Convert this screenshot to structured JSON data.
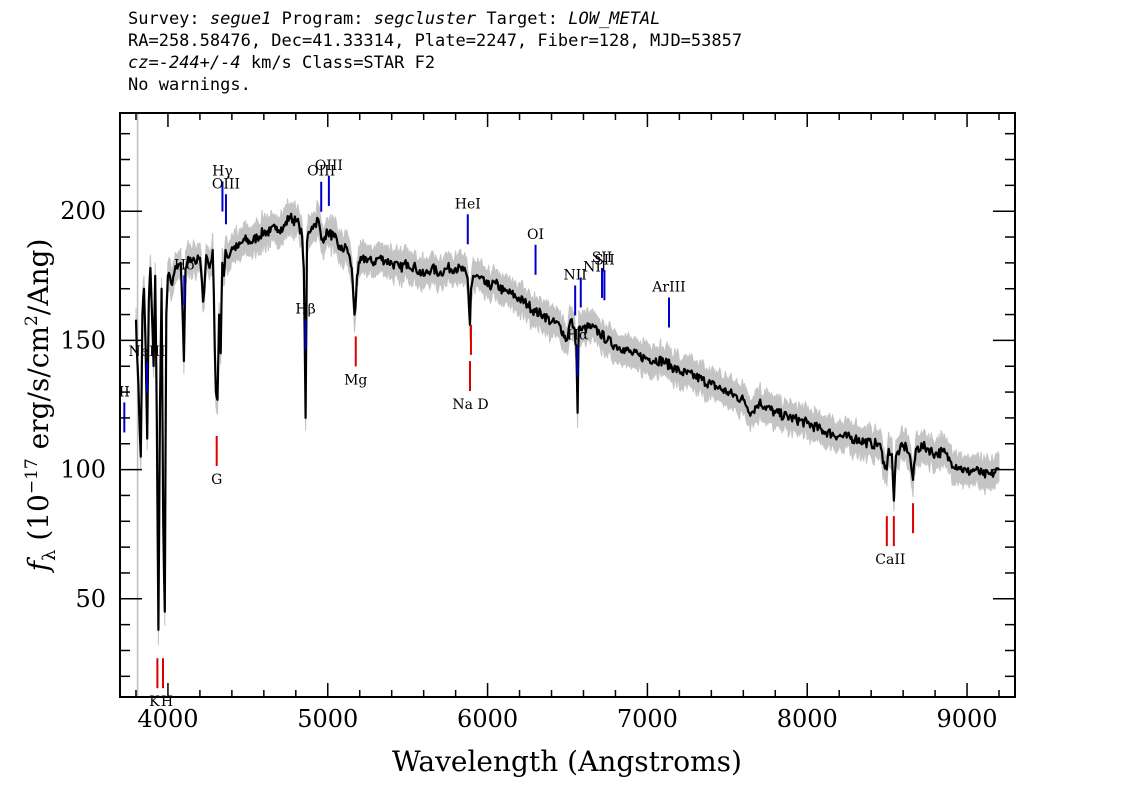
{
  "header": {
    "survey_label": "Survey:",
    "survey_value": "segue1",
    "program_label": "Program:",
    "program_value": "segcluster",
    "target_label": "Target:",
    "target_value": "LOW_METAL",
    "line2": "RA=258.58476, Dec=41.33314, Plate=2247, Fiber=128, MJD=53857",
    "cz_label": "cz=",
    "cz_value": "-244+/-4",
    "cz_unit_class": " km/s Class=STAR F2",
    "warnings": "No warnings."
  },
  "chart_data": {
    "type": "line",
    "xlabel": "Wavelength (Angstroms)",
    "ylabel": "f_λ (10^-17 erg/s/cm^2/Ang)",
    "xlim": [
      3700,
      9300
    ],
    "ylim": [
      12,
      238
    ],
    "x_ticks": [
      4000,
      5000,
      6000,
      7000,
      8000,
      9000
    ],
    "y_ticks": [
      50,
      100,
      150,
      200
    ],
    "colors": {
      "flux": "#000000",
      "error_band": "#c4c4c4",
      "emission_marker": "#0000cc",
      "absorption_marker": "#dd0000"
    },
    "series": [
      {
        "x": [
          3800,
          3810,
          3820,
          3830,
          3840,
          3850,
          3860,
          3870,
          3880,
          3890,
          3900,
          3910,
          3920,
          3930,
          3940,
          3950,
          3960,
          3970,
          3980,
          3990,
          4000,
          4020,
          4040,
          4060,
          4080,
          4100,
          4110,
          4120,
          4140,
          4160,
          4180,
          4200,
          4220,
          4240,
          4260,
          4280,
          4300,
          4310,
          4320,
          4330,
          4340,
          4350,
          4360,
          4380,
          4400,
          4440,
          4480,
          4520,
          4560,
          4600,
          4640,
          4680,
          4720,
          4760,
          4800,
          4820,
          4840,
          4850,
          4861,
          4870,
          4880,
          4900,
          4920,
          4940,
          4960,
          4980,
          5000,
          5040,
          5080,
          5120,
          5150,
          5167,
          5172,
          5183,
          5200,
          5240,
          5280,
          5320,
          5360,
          5400,
          5450,
          5500,
          5550,
          5600,
          5650,
          5700,
          5750,
          5800,
          5850,
          5875,
          5890,
          5896,
          5910,
          5950,
          6000,
          6050,
          6100,
          6150,
          6200,
          6250,
          6300,
          6350,
          6400,
          6450,
          6495,
          6520,
          6540,
          6555,
          6563,
          6570,
          6590,
          6620,
          6650,
          6700,
          6750,
          6800,
          6850,
          6900,
          6950,
          7000,
          7100,
          7200,
          7300,
          7400,
          7500,
          7600,
          7650,
          7700,
          7800,
          7900,
          8000,
          8100,
          8200,
          8300,
          8400,
          8450,
          8480,
          8498,
          8510,
          8530,
          8542,
          8555,
          8580,
          8620,
          8640,
          8662,
          8680,
          8720,
          8760,
          8800,
          8850,
          8900,
          8950,
          9000,
          9050,
          9100,
          9150,
          9200
        ],
        "y": [
          158,
          140,
          122,
          105,
          160,
          170,
          148,
          112,
          165,
          178,
          160,
          140,
          175,
          120,
          38,
          125,
          170,
          80,
          45,
          160,
          175,
          172,
          176,
          178,
          180,
          142,
          178,
          180,
          182,
          182,
          180,
          182,
          165,
          183,
          178,
          185,
          130,
          127,
          160,
          145,
          180,
          175,
          185,
          182,
          186,
          186,
          189,
          188,
          190,
          192,
          192,
          194,
          193,
          198,
          196,
          195,
          190,
          178,
          120,
          188,
          192,
          194,
          195,
          197,
          189,
          190,
          192,
          190,
          185,
          186,
          178,
          160,
          162,
          175,
          180,
          182,
          180,
          182,
          181,
          180,
          178,
          180,
          178,
          175,
          178,
          176,
          178,
          178,
          177,
          174,
          156,
          170,
          175,
          174,
          171,
          172,
          169,
          168,
          166,
          164,
          161,
          160,
          157,
          156,
          150,
          158,
          155,
          148,
          122,
          155,
          154,
          155,
          155,
          153,
          150,
          148,
          147,
          145,
          144,
          143,
          142,
          138,
          136,
          133,
          130,
          127,
          122,
          126,
          122,
          120,
          118,
          115,
          113,
          112,
          110,
          110,
          103,
          100,
          108,
          106,
          88,
          105,
          108,
          109,
          106,
          96,
          108,
          109,
          108,
          106,
          107,
          103,
          101,
          99,
          100,
          98,
          98,
          100
        ]
      }
    ],
    "emission_lines": [
      {
        "label": "II",
        "x": 3727
      },
      {
        "label": "NeIII",
        "x": 3869
      },
      {
        "label": "Hδ",
        "x": 4102
      },
      {
        "label": "Hγ",
        "x": 4341
      },
      {
        "label": "OIII",
        "x": 4363
      },
      {
        "label": "Hβ",
        "x": 4861
      },
      {
        "label": "OIII",
        "x": 4959
      },
      {
        "label": "OIII",
        "x": 5007
      },
      {
        "label": "HeI",
        "x": 5876
      },
      {
        "label": "OI",
        "x": 6300
      },
      {
        "label": "NII",
        "x": 6548
      },
      {
        "label": "Hα",
        "x": 6563
      },
      {
        "label": "NII",
        "x": 6583
      },
      {
        "label": "SII",
        "x": 6716
      },
      {
        "label": "SII",
        "x": 6731
      },
      {
        "label": "ArIII",
        "x": 7135
      }
    ],
    "absorption_lines": [
      {
        "label": "K",
        "x": 3934
      },
      {
        "label": "H",
        "x": 3969
      },
      {
        "label": "G",
        "x": 4305
      },
      {
        "label": "Mg",
        "x": 5175
      },
      {
        "label": "Na",
        "x": 5890
      },
      {
        "label": "D",
        "x": 5896
      },
      {
        "label": "CaII",
        "x": 8498
      },
      {
        "label": "CaII",
        "x": 8542
      },
      {
        "label": "CaII",
        "x": 8662
      }
    ]
  }
}
